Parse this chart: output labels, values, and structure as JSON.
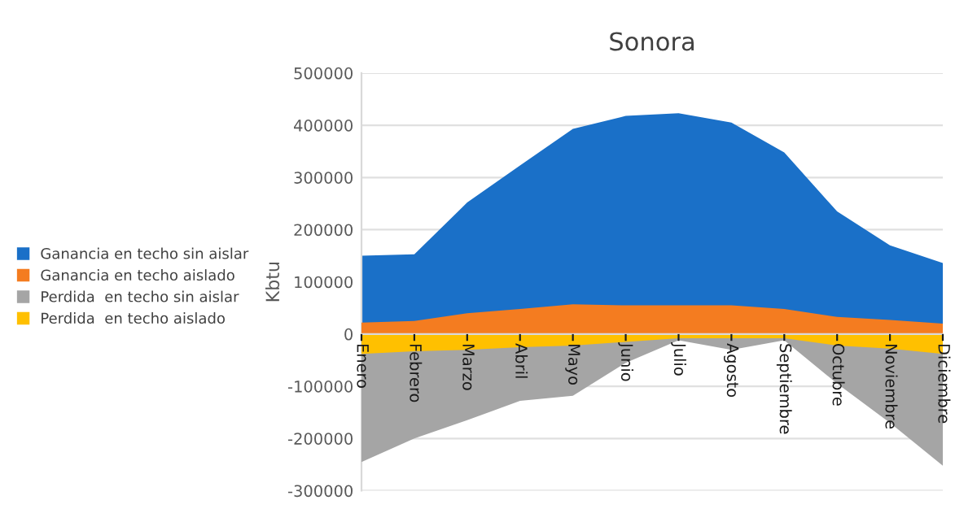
{
  "chart_data": {
    "type": "area",
    "title": "Sonora",
    "ylabel": "Kbtu",
    "categories": [
      "Enero",
      "Febrero",
      "Marzo",
      "Abril",
      "Mayo",
      "Junio",
      "Julio",
      "Agosto",
      "Septiembre",
      "Octubre",
      "Noviembre",
      "Diciembre"
    ],
    "series": [
      {
        "name": "Ganancia en techo sin aislar",
        "color": "#1a70c8",
        "values": [
          150000,
          153000,
          252000,
          323000,
          393000,
          418000,
          423000,
          405000,
          348000,
          235000,
          170000,
          136000
        ]
      },
      {
        "name": "Ganancia en techo aislado",
        "color": "#f47c20",
        "values": [
          22000,
          25000,
          40000,
          48000,
          57000,
          55000,
          55000,
          55000,
          48000,
          33000,
          27000,
          20000
        ]
      },
      {
        "name": "Perdida  en techo sin aislar",
        "color": "#a5a5a5",
        "values": [
          -245000,
          -200000,
          -165000,
          -128000,
          -118000,
          -55000,
          -12000,
          -30000,
          -12000,
          -95000,
          -170000,
          -252000
        ]
      },
      {
        "name": "Perdida  en techo aislado",
        "color": "#ffc000",
        "values": [
          -38000,
          -33000,
          -30000,
          -25000,
          -22000,
          -15000,
          -8000,
          -8000,
          -8000,
          -22000,
          -28000,
          -38000
        ]
      }
    ],
    "ylim": [
      -300000,
      500000
    ],
    "yticks": [
      -300000,
      -200000,
      -100000,
      0,
      100000,
      200000,
      300000,
      400000,
      500000
    ],
    "grid": "y",
    "legend": "left"
  }
}
